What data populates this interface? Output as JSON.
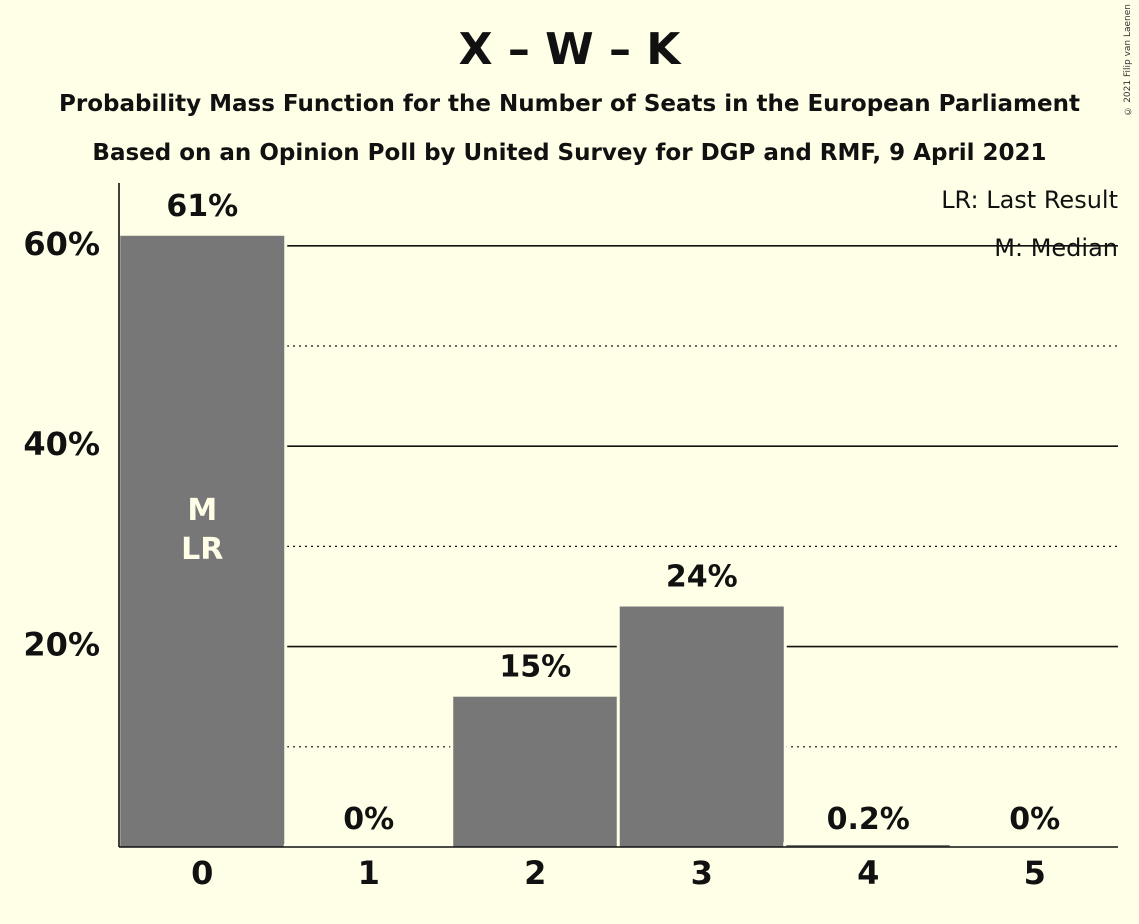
{
  "header": {
    "title": "X – W – K",
    "subtitle_1": "Probability Mass Function for the Number of Seats in the European Parliament",
    "subtitle_2": "Based on an Opinion Poll by United Survey for DGP and RMF, 9 April 2021",
    "copyright": "© 2021 Filip van Laenen"
  },
  "legend": {
    "last_result": "LR: Last Result",
    "median": "M: Median"
  },
  "chart_data": {
    "type": "bar",
    "categories": [
      "0",
      "1",
      "2",
      "3",
      "4",
      "5"
    ],
    "values": [
      61,
      0,
      15,
      24,
      0.2,
      0
    ],
    "data_labels": [
      "61%",
      "0%",
      "15%",
      "24%",
      "0.2%",
      "0%"
    ],
    "bar_annotations": [
      [
        "M",
        "LR"
      ],
      [],
      [],
      [],
      [],
      []
    ],
    "y_ticks": [
      "20%",
      "40%",
      "60%"
    ],
    "y_tick_values": [
      20,
      40,
      60
    ],
    "ylim": [
      0,
      66
    ],
    "grid": {
      "solid_every": 20,
      "dotted_every": 10
    },
    "legend_placement": "top-right",
    "colors": {
      "bar": "#777777",
      "background": "#FFFEE6",
      "annotation_text": "#FFFEE6",
      "text": "#111111"
    }
  }
}
